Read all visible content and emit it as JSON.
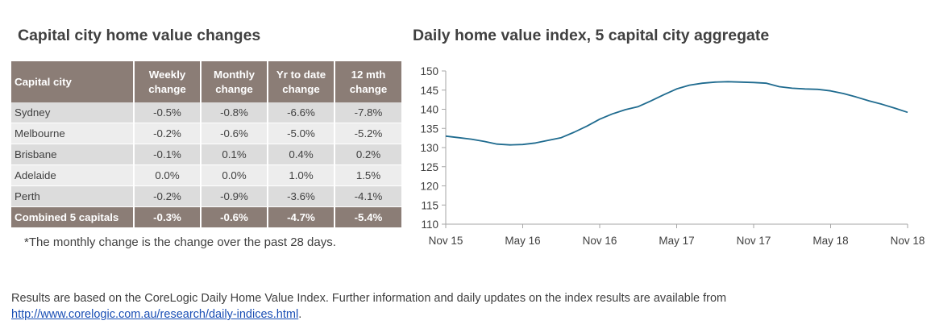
{
  "table": {
    "title": "Capital city home value changes",
    "headers": [
      "Capital city",
      "Weekly change",
      "Monthly change",
      "Yr to date change",
      "12 mth change"
    ],
    "header_lines": [
      [
        "Capital city"
      ],
      [
        "Weekly",
        "change"
      ],
      [
        "Monthly",
        "change"
      ],
      [
        "Yr to date",
        "change"
      ],
      [
        "12 mth",
        "change"
      ]
    ],
    "rows": [
      [
        "Sydney",
        "-0.5%",
        "-0.8%",
        "-6.6%",
        "-7.8%"
      ],
      [
        "Melbourne",
        "-0.2%",
        "-0.6%",
        "-5.0%",
        "-5.2%"
      ],
      [
        "Brisbane",
        "-0.1%",
        "0.1%",
        "0.4%",
        "0.2%"
      ],
      [
        "Adelaide",
        "0.0%",
        "0.0%",
        "1.0%",
        "1.5%"
      ],
      [
        "Perth",
        "-0.2%",
        "-0.9%",
        "-3.6%",
        "-4.1%"
      ]
    ],
    "total_row": [
      "Combined 5 capitals",
      "-0.3%",
      "-0.6%",
      "-4.7%",
      "-5.4%"
    ],
    "footnote": "*The monthly change is the change over the past 28 days."
  },
  "chart_data": {
    "type": "line",
    "title": "Daily home value index, 5 capital city aggregate",
    "xlabel": "",
    "ylabel": "",
    "ylim": [
      110,
      150
    ],
    "yticks": [
      110,
      115,
      120,
      125,
      130,
      135,
      140,
      145,
      150
    ],
    "xticks": [
      "Nov 15",
      "May 16",
      "Nov 16",
      "May 17",
      "Nov 17",
      "May 18",
      "Nov 18"
    ],
    "grid": false,
    "line_color": "#1f6b8f",
    "series": [
      {
        "x": [
          "2015-11",
          "2015-12",
          "2016-01",
          "2016-02",
          "2016-03",
          "2016-04",
          "2016-05",
          "2016-06",
          "2016-07",
          "2016-08",
          "2016-09",
          "2016-10",
          "2016-11",
          "2016-12",
          "2017-01",
          "2017-02",
          "2017-03",
          "2017-04",
          "2017-05",
          "2017-06",
          "2017-07",
          "2017-08",
          "2017-09",
          "2017-10",
          "2017-11",
          "2017-12",
          "2018-01",
          "2018-02",
          "2018-03",
          "2018-04",
          "2018-05",
          "2018-06",
          "2018-07",
          "2018-08",
          "2018-09",
          "2018-10",
          "2018-11"
        ],
        "values": [
          133.0,
          132.6,
          132.2,
          131.6,
          130.9,
          130.7,
          130.8,
          131.2,
          131.9,
          132.6,
          134.0,
          135.6,
          137.4,
          138.8,
          139.9,
          140.7,
          142.2,
          143.8,
          145.3,
          146.3,
          146.8,
          147.1,
          147.2,
          147.1,
          147.0,
          146.8,
          145.9,
          145.5,
          145.3,
          145.2,
          144.8,
          144.1,
          143.2,
          142.2,
          141.3,
          140.3,
          139.2
        ]
      }
    ]
  },
  "source": {
    "text": "Results are based on the CoreLogic Daily Home Value Index.  Further information and daily updates on the index results are available from",
    "link": "http://www.corelogic.com.au/research/daily-indices.html",
    "link_suffix": "."
  }
}
